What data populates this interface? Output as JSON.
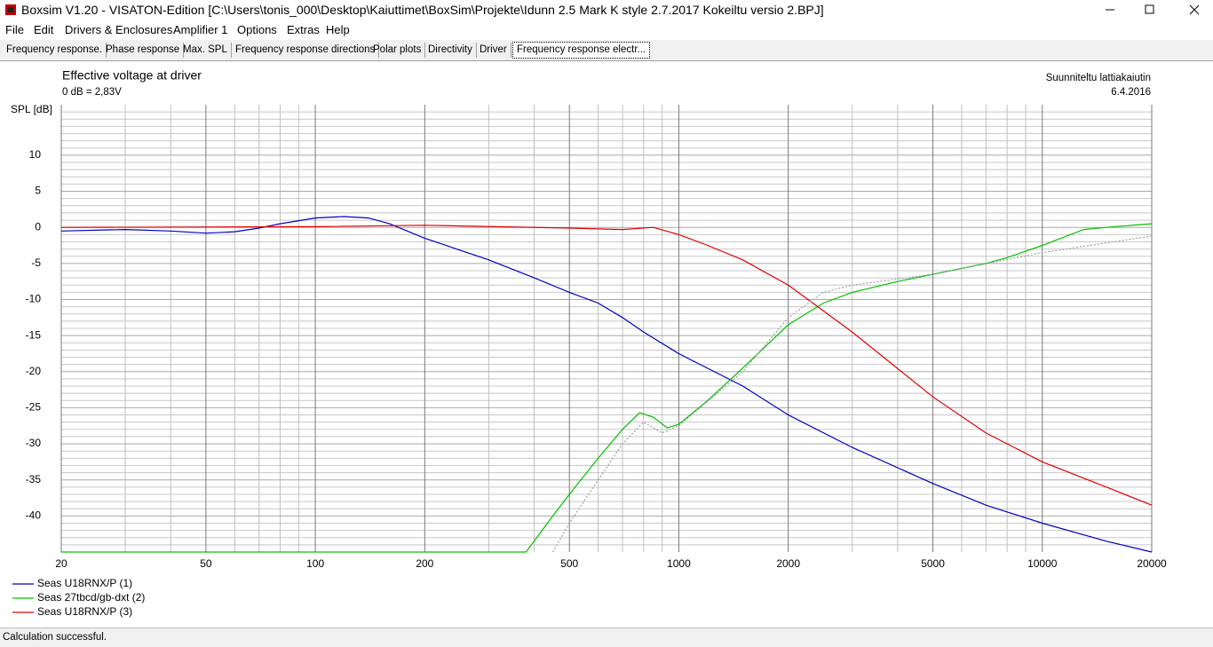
{
  "window": {
    "title": "Boxsim V1.20 - VISATON-Edition [C:\\Users\\tonis_000\\Desktop\\Kaiuttimet\\BoxSim\\Projekte\\Idunn 2.5 Mark K style 2.7.2017 Kokeiltu versio 2.BPJ]"
  },
  "menu": [
    "File",
    "Edit",
    "Drivers & Enclosures",
    "Amplifier 1",
    "Options",
    "Extras",
    "Help"
  ],
  "tabs": [
    "Frequency response.",
    "Phase response",
    "Max. SPL",
    "Frequency response directions",
    "Polar plots",
    "Directivity",
    "Driver",
    "Frequency response electr..."
  ],
  "status": "Calculation successful.",
  "chart_data": {
    "type": "line",
    "title": "Effective voltage at driver",
    "subtitle": "0 dB = 2,83V",
    "y_label": "SPL [dB]",
    "annotations": [
      "Suunniteltu lattiakaiutin",
      "6.4.2016"
    ],
    "x_log": true,
    "xlim": [
      20,
      20000
    ],
    "ylim": [
      -45,
      17
    ],
    "xticks": [
      20,
      50,
      100,
      200,
      500,
      1000,
      2000,
      5000,
      10000,
      20000
    ],
    "x_minor_ticks": [
      30,
      40,
      60,
      70,
      80,
      90,
      300,
      400,
      600,
      700,
      800,
      900,
      3000,
      4000,
      6000,
      7000,
      8000,
      9000
    ],
    "yticks": [
      10,
      5,
      0,
      -5,
      -10,
      -15,
      -20,
      -25,
      -30,
      -35,
      -40
    ],
    "y_minor_ticks": [
      16,
      15,
      14,
      13,
      12,
      11,
      9,
      8,
      7,
      6,
      4,
      3,
      2,
      1,
      -1,
      -2,
      -3,
      -4,
      -6,
      -7,
      -8,
      -9,
      -11,
      -12,
      -13,
      -14,
      -16,
      -17,
      -18,
      -19,
      -21,
      -22,
      -23,
      -24,
      -26,
      -27,
      -28,
      -29,
      -31,
      -32,
      -33,
      -34,
      -36,
      -37,
      -38,
      -39,
      -41,
      -42,
      -43,
      -44
    ],
    "grid": true,
    "series": [
      {
        "name": "Seas U18RNX/P (1)",
        "color": "#0000c0",
        "x": [
          20,
          30,
          40,
          50,
          60,
          70,
          80,
          100,
          120,
          140,
          160,
          200,
          300,
          400,
          500,
          600,
          700,
          800,
          1000,
          1500,
          2000,
          3000,
          5000,
          7000,
          10000,
          15000,
          20000
        ],
        "values": [
          -0.5,
          -0.3,
          -0.5,
          -0.8,
          -0.6,
          -0.1,
          0.5,
          1.3,
          1.5,
          1.3,
          0.5,
          -1.5,
          -4.5,
          -7,
          -9,
          -10.5,
          -12.5,
          -14.5,
          -17.5,
          -22,
          -26,
          -30.5,
          -35.5,
          -38.5,
          -41,
          -43.5,
          -45
        ]
      },
      {
        "name": "Seas 27tbcd/gb-dxt (2)",
        "color": "#00c000",
        "x": [
          20,
          380,
          450,
          500,
          600,
          700,
          780,
          850,
          930,
          1000,
          1200,
          1500,
          2000,
          2500,
          3000,
          4000,
          5000,
          7000,
          8000,
          10000,
          13000,
          15000,
          20000
        ],
        "values": [
          -45,
          -45,
          -40,
          -37,
          -32,
          -28,
          -25.7,
          -26.3,
          -27.8,
          -27.3,
          -24,
          -19.5,
          -13.5,
          -10.5,
          -9,
          -7.5,
          -6.5,
          -5,
          -4.2,
          -2.5,
          -0.3,
          0,
          0.5
        ]
      },
      {
        "name": "Seas U18RNX/P (3)",
        "color": "#e00000",
        "x": [
          20,
          100,
          200,
          500,
          700,
          850,
          1000,
          1200,
          1500,
          2000,
          3000,
          5000,
          7000,
          10000,
          15000,
          20000
        ],
        "values": [
          0,
          0.1,
          0.3,
          -0.1,
          -0.3,
          0,
          -1,
          -2.5,
          -4.5,
          -8,
          -14.5,
          -23.5,
          -28.5,
          -32.5,
          -36,
          -38.5
        ]
      },
      {
        "color": "#a0a0a0",
        "linestyle": "dotted",
        "x": [
          450,
          500,
          600,
          700,
          800,
          900,
          1000,
          1500,
          2000,
          2500,
          3000,
          5000,
          10000,
          20000
        ],
        "values": [
          -45,
          -41,
          -35,
          -30,
          -27,
          -28.5,
          -27.5,
          -20,
          -12.5,
          -9,
          -8,
          -6.5,
          -3.5,
          -1.2
        ]
      }
    ]
  }
}
